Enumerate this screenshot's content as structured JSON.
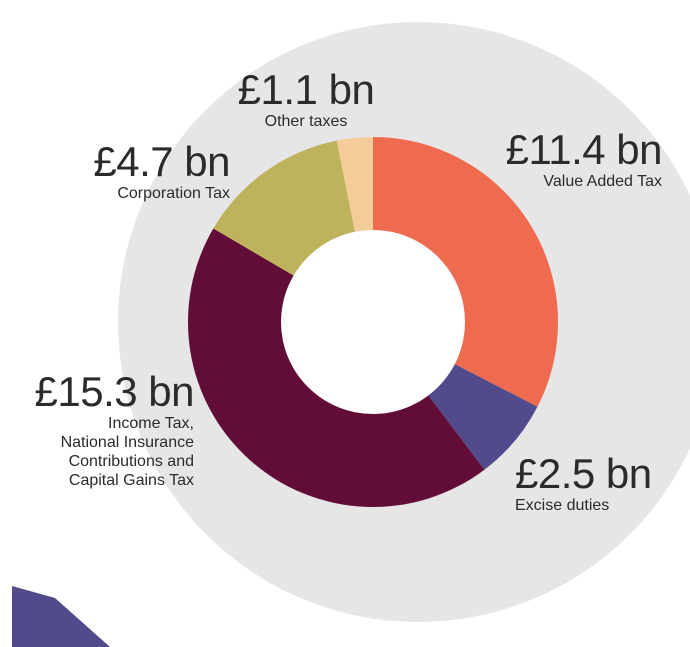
{
  "chart_data": {
    "type": "pie",
    "variant": "donut",
    "slices": [
      {
        "key": "vat",
        "amount_label": "£11.4 bn",
        "value": 11.4,
        "name_lines": [
          "Value Added Tax"
        ],
        "color": "#ee6b50"
      },
      {
        "key": "excise",
        "amount_label": "£2.5 bn",
        "value": 2.5,
        "name_lines": [
          "Excise duties"
        ],
        "color": "#514a8b"
      },
      {
        "key": "income",
        "amount_label": "£15.3 bn",
        "value": 15.3,
        "name_lines": [
          "Income Tax,",
          "National Insurance",
          "Contributions and",
          "Capital Gains Tax"
        ],
        "color": "#620d37"
      },
      {
        "key": "corp",
        "amount_label": "£4.7 bn",
        "value": 4.7,
        "name_lines": [
          "Corporation Tax"
        ],
        "color": "#bfb25d"
      },
      {
        "key": "other",
        "amount_label": "£1.1 bn",
        "value": 1.1,
        "name_lines": [
          "Other taxes"
        ],
        "color": "#f3cc99"
      }
    ],
    "start_angle": "12 o'clock",
    "direction": "clockwise"
  },
  "colors": {
    "background_disc": "#e6e6e6",
    "corner_shape": "#514a8b",
    "hole": "#ffffff"
  }
}
